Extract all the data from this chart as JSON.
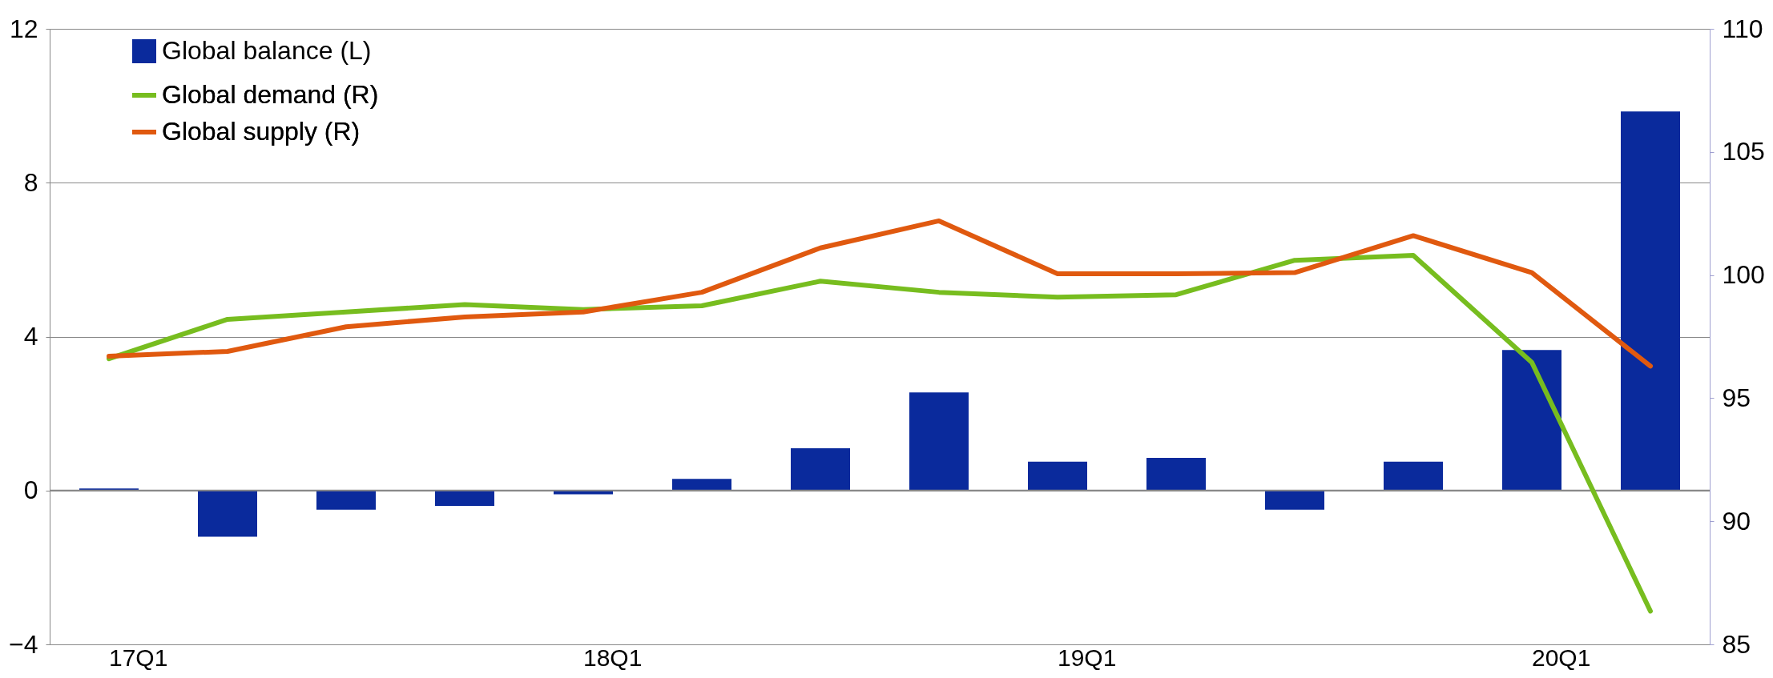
{
  "chart_data": {
    "type": "bar",
    "categories": [
      "17Q1",
      null,
      null,
      null,
      "18Q1",
      null,
      null,
      null,
      "19Q1",
      null,
      null,
      null,
      "20Q1",
      null
    ],
    "series": [
      {
        "name": "Global balance (L)",
        "color": "#0a2a9c",
        "values": [
          0.05,
          -1.2,
          -0.5,
          -0.4,
          -0.1,
          0.3,
          1.1,
          2.55,
          0.75,
          0.85,
          -0.5,
          0.75,
          3.65,
          9.85
        ]
      },
      {
        "name": "Global demand (R)",
        "type": "line",
        "axis": "y2",
        "color": "#77bd1f",
        "values": [
          96.6,
          98.2,
          98.5,
          98.8,
          98.6,
          98.75,
          99.75,
          99.3,
          99.1,
          99.2,
          100.6,
          100.8,
          96.45,
          86.35
        ]
      },
      {
        "name": "Global supply (R)",
        "type": "line",
        "axis": "y2",
        "color": "#e0590f",
        "values": [
          96.7,
          96.9,
          97.9,
          98.3,
          98.5,
          99.3,
          101.1,
          102.2,
          100.05,
          100.05,
          100.1,
          101.6,
          100.1,
          96.3
        ]
      }
    ],
    "ylim": [
      -4,
      12
    ],
    "yticks": [
      -4,
      0,
      4,
      8,
      12
    ],
    "y2lim": [
      85,
      110
    ],
    "y2ticks": [
      85,
      90,
      95,
      100,
      105,
      110
    ],
    "grid": "y",
    "legend": "top left"
  }
}
